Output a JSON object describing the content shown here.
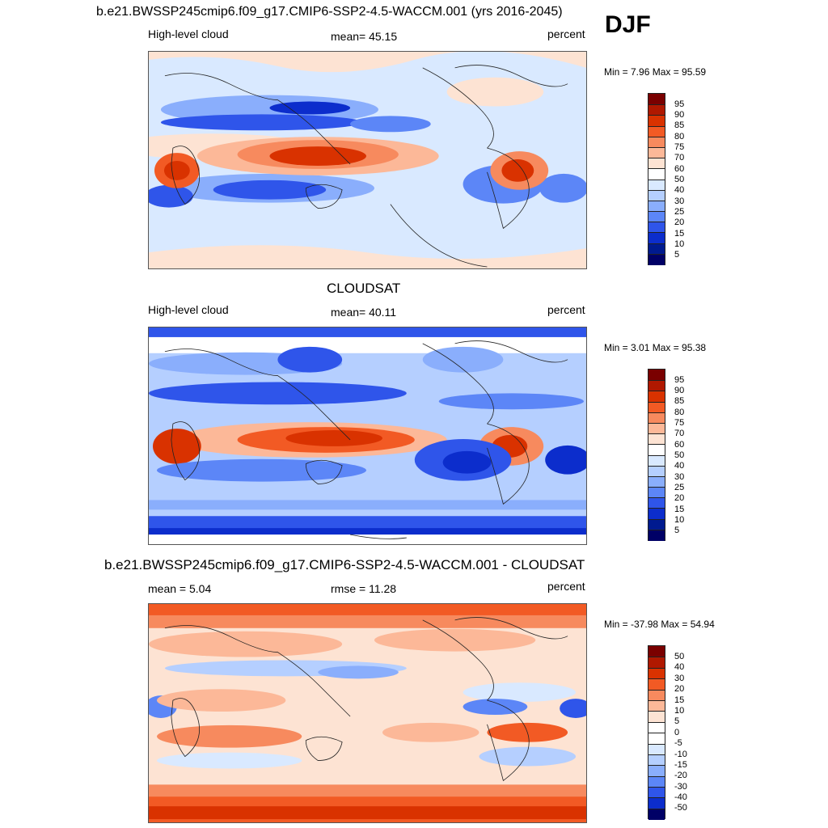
{
  "season": "DJF",
  "panels": [
    {
      "title": "b.e21.BWSSP245cmip6.f09_g17.CMIP6-SSP2-4.5-WACCM.001 (yrs 2016-2045)",
      "left_label": "High-level cloud",
      "center_label": "mean=  45.15",
      "right_label": "percent",
      "minmax": "Min =   7.96 Max =  95.59",
      "colorbar_labels": [
        "95",
        "90",
        "85",
        "80",
        "75",
        "70",
        "60",
        "50",
        "40",
        "30",
        "25",
        "20",
        "15",
        "10",
        "5"
      ]
    },
    {
      "title": "CLOUDSAT",
      "left_label": "High-level cloud",
      "center_label": "mean=  40.11",
      "right_label": "percent",
      "minmax": "Min =   3.01 Max =  95.38",
      "colorbar_labels": [
        "95",
        "90",
        "85",
        "80",
        "75",
        "70",
        "60",
        "50",
        "40",
        "30",
        "25",
        "20",
        "15",
        "10",
        "5"
      ]
    },
    {
      "title": "b.e21.BWSSP245cmip6.f09_g17.CMIP6-SSP2-4.5-WACCM.001 - CLOUDSAT",
      "left_label": "mean =   5.04",
      "center_label": "rmse =  11.28",
      "right_label": "percent",
      "minmax": "Min = -37.98 Max =  54.94",
      "colorbar_labels": [
        "50",
        "40",
        "30",
        "20",
        "15",
        "10",
        "5",
        "0",
        "-5",
        "-10",
        "-15",
        "-20",
        "-30",
        "-40",
        "-50"
      ]
    }
  ],
  "colors": {
    "abs_scale": [
      "#7a0000",
      "#b01800",
      "#d93200",
      "#f25a24",
      "#f78a5e",
      "#fcb898",
      "#fde3d3",
      "#ffffff",
      "#d9e9ff",
      "#b5cfff",
      "#8aaefc",
      "#5c86f7",
      "#2f55ea",
      "#0c2dcc",
      "#001a8f",
      "#000066"
    ],
    "diff_scale": [
      "#7a0000",
      "#b01800",
      "#d93200",
      "#f25a24",
      "#f78a5e",
      "#fcb898",
      "#fde3d3",
      "#ffffff",
      "#ffffff",
      "#d9e9ff",
      "#b5cfff",
      "#8aaefc",
      "#5c86f7",
      "#2f55ea",
      "#0c2dcc",
      "#000066"
    ]
  }
}
